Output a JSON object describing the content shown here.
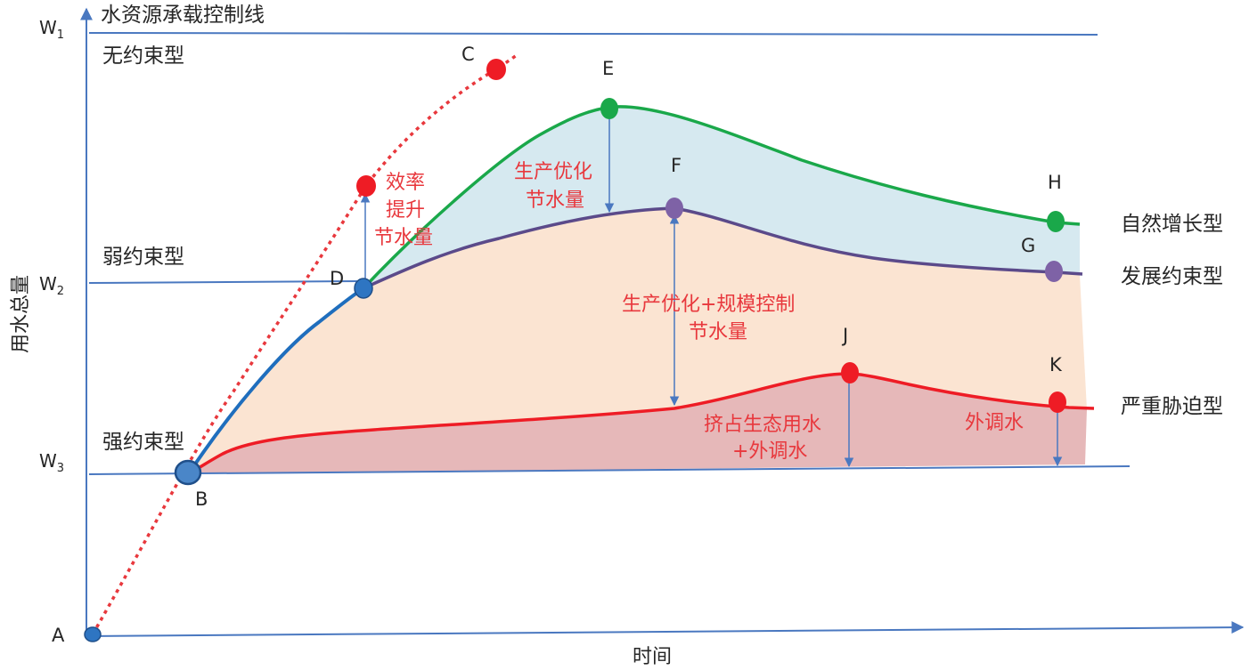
{
  "axes": {
    "y_label": "用水总量",
    "x_label": "时间",
    "ticks": [
      {
        "main": "W",
        "sub": "1"
      },
      {
        "main": "W",
        "sub": "2"
      },
      {
        "main": "W",
        "sub": "3"
      }
    ]
  },
  "lines": {
    "control_line": "水资源承载控制线"
  },
  "types": {
    "unconstrained": "无约束型",
    "weak": "弱约束型",
    "strong": "强约束型",
    "natural_growth": "自然增长型",
    "development_constrained": "发展约束型",
    "severe_stress": "严重胁迫型"
  },
  "annotations": {
    "efficiency_1": "效率",
    "efficiency_2": "提升",
    "efficiency_3": "节水量",
    "production_1": "生产优化",
    "production_2": "节水量",
    "scale_1": "生产优化+规模控制",
    "scale_2": "节水量",
    "ecology_1": "挤占生态用水",
    "ecology_2": "+外调水",
    "transfer": "外调水"
  },
  "points": {
    "A": "A",
    "B": "B",
    "C": "C",
    "D": "D",
    "E": "E",
    "F": "F",
    "G": "G",
    "H": "H",
    "J": "J",
    "K": "K"
  },
  "colors": {
    "axis": "#4a78c0",
    "unconstrained": "#e8383d",
    "natural_growth": "#1aa84a",
    "development_constrained": "#5b4a8a",
    "severe_stress": "#ee1c25",
    "region_blue": "#d6e9f0",
    "region_peach": "#fbe4d2",
    "region_red": "#e6b8b9",
    "annotation_text": "#e8383d"
  }
}
